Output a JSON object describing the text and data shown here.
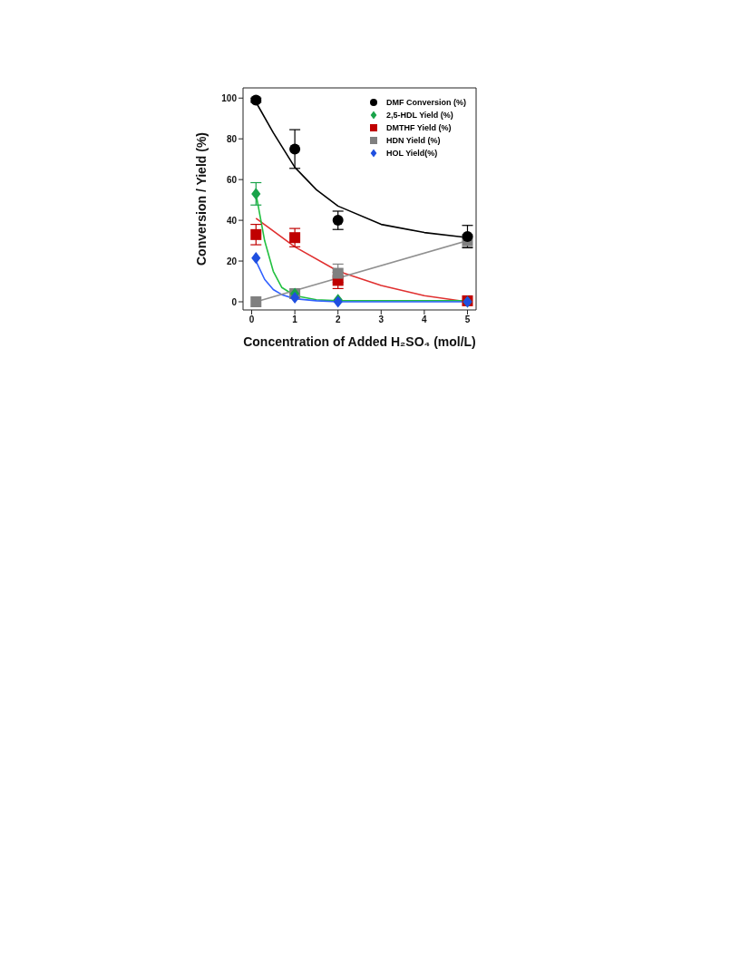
{
  "chart_data": {
    "type": "scatter",
    "xlabel": "Concentration of Added H₂SO₄ (mol/L)",
    "ylabel": "Conversion / Yield (%)",
    "xlim": [
      -0.2,
      5.2
    ],
    "ylim": [
      -4,
      105
    ],
    "xticks": [
      0,
      1,
      2,
      3,
      4,
      5
    ],
    "yticks": [
      0,
      20,
      40,
      60,
      80,
      100
    ],
    "grid": false,
    "legend": "top right",
    "x": [
      0.1,
      1,
      2,
      5
    ],
    "series": [
      {
        "name": "DMF Conversion (%)",
        "color": "#000000",
        "marker": "circle",
        "values": [
          99,
          75,
          40,
          32
        ],
        "errors": [
          1,
          9.5,
          4.5,
          5.5
        ]
      },
      {
        "name": "2,5-HDL Yield (%)",
        "color": "#1aa34a",
        "marker": "diamond",
        "values": [
          53,
          4,
          1,
          0
        ],
        "errors": [
          5.5,
          null,
          null,
          null
        ]
      },
      {
        "name": "DMTHF Yield (%)",
        "color": "#c00000",
        "marker": "square",
        "values": [
          33,
          31.5,
          10.5,
          0.5
        ],
        "errors": [
          5,
          4.5,
          4,
          null
        ]
      },
      {
        "name": "HDN Yield (%)",
        "color": "#808080",
        "marker": "square",
        "values": [
          0,
          4,
          14,
          30
        ],
        "errors": [
          null,
          null,
          4.5,
          3
        ]
      },
      {
        "name": "HOL Yield(%)",
        "color": "#1f4fe0",
        "marker": "diamond",
        "values": [
          21.5,
          2,
          0,
          0
        ],
        "errors": [
          null,
          null,
          null,
          null
        ]
      },
      {
        "type": "line",
        "marker": "none",
        "color": "#000000",
        "x": [
          0.1,
          0.5,
          1,
          1.5,
          2,
          3,
          4,
          5
        ],
        "values": [
          98,
          83,
          66,
          55,
          47,
          38,
          34,
          31.5
        ]
      },
      {
        "type": "line",
        "marker": "none",
        "color": "#e03030",
        "x": [
          0.1,
          1,
          2,
          3,
          4,
          5
        ],
        "values": [
          41,
          27,
          15,
          8,
          3,
          0
        ]
      },
      {
        "type": "line",
        "marker": "none",
        "color": "#22c040",
        "x": [
          0.1,
          0.3,
          0.5,
          0.7,
          1,
          1.5,
          2,
          5
        ],
        "values": [
          53,
          30,
          15,
          7,
          3,
          1,
          0.5,
          0.5
        ]
      },
      {
        "type": "line",
        "marker": "none",
        "color": "#3060ff",
        "x": [
          0.1,
          0.3,
          0.5,
          0.7,
          1,
          1.5,
          2,
          5
        ],
        "values": [
          20,
          11,
          6,
          3.5,
          1.5,
          0.5,
          0,
          0
        ]
      },
      {
        "type": "line",
        "marker": "none",
        "color": "#909090",
        "x": [
          0.1,
          5
        ],
        "values": [
          0,
          30
        ]
      }
    ]
  }
}
